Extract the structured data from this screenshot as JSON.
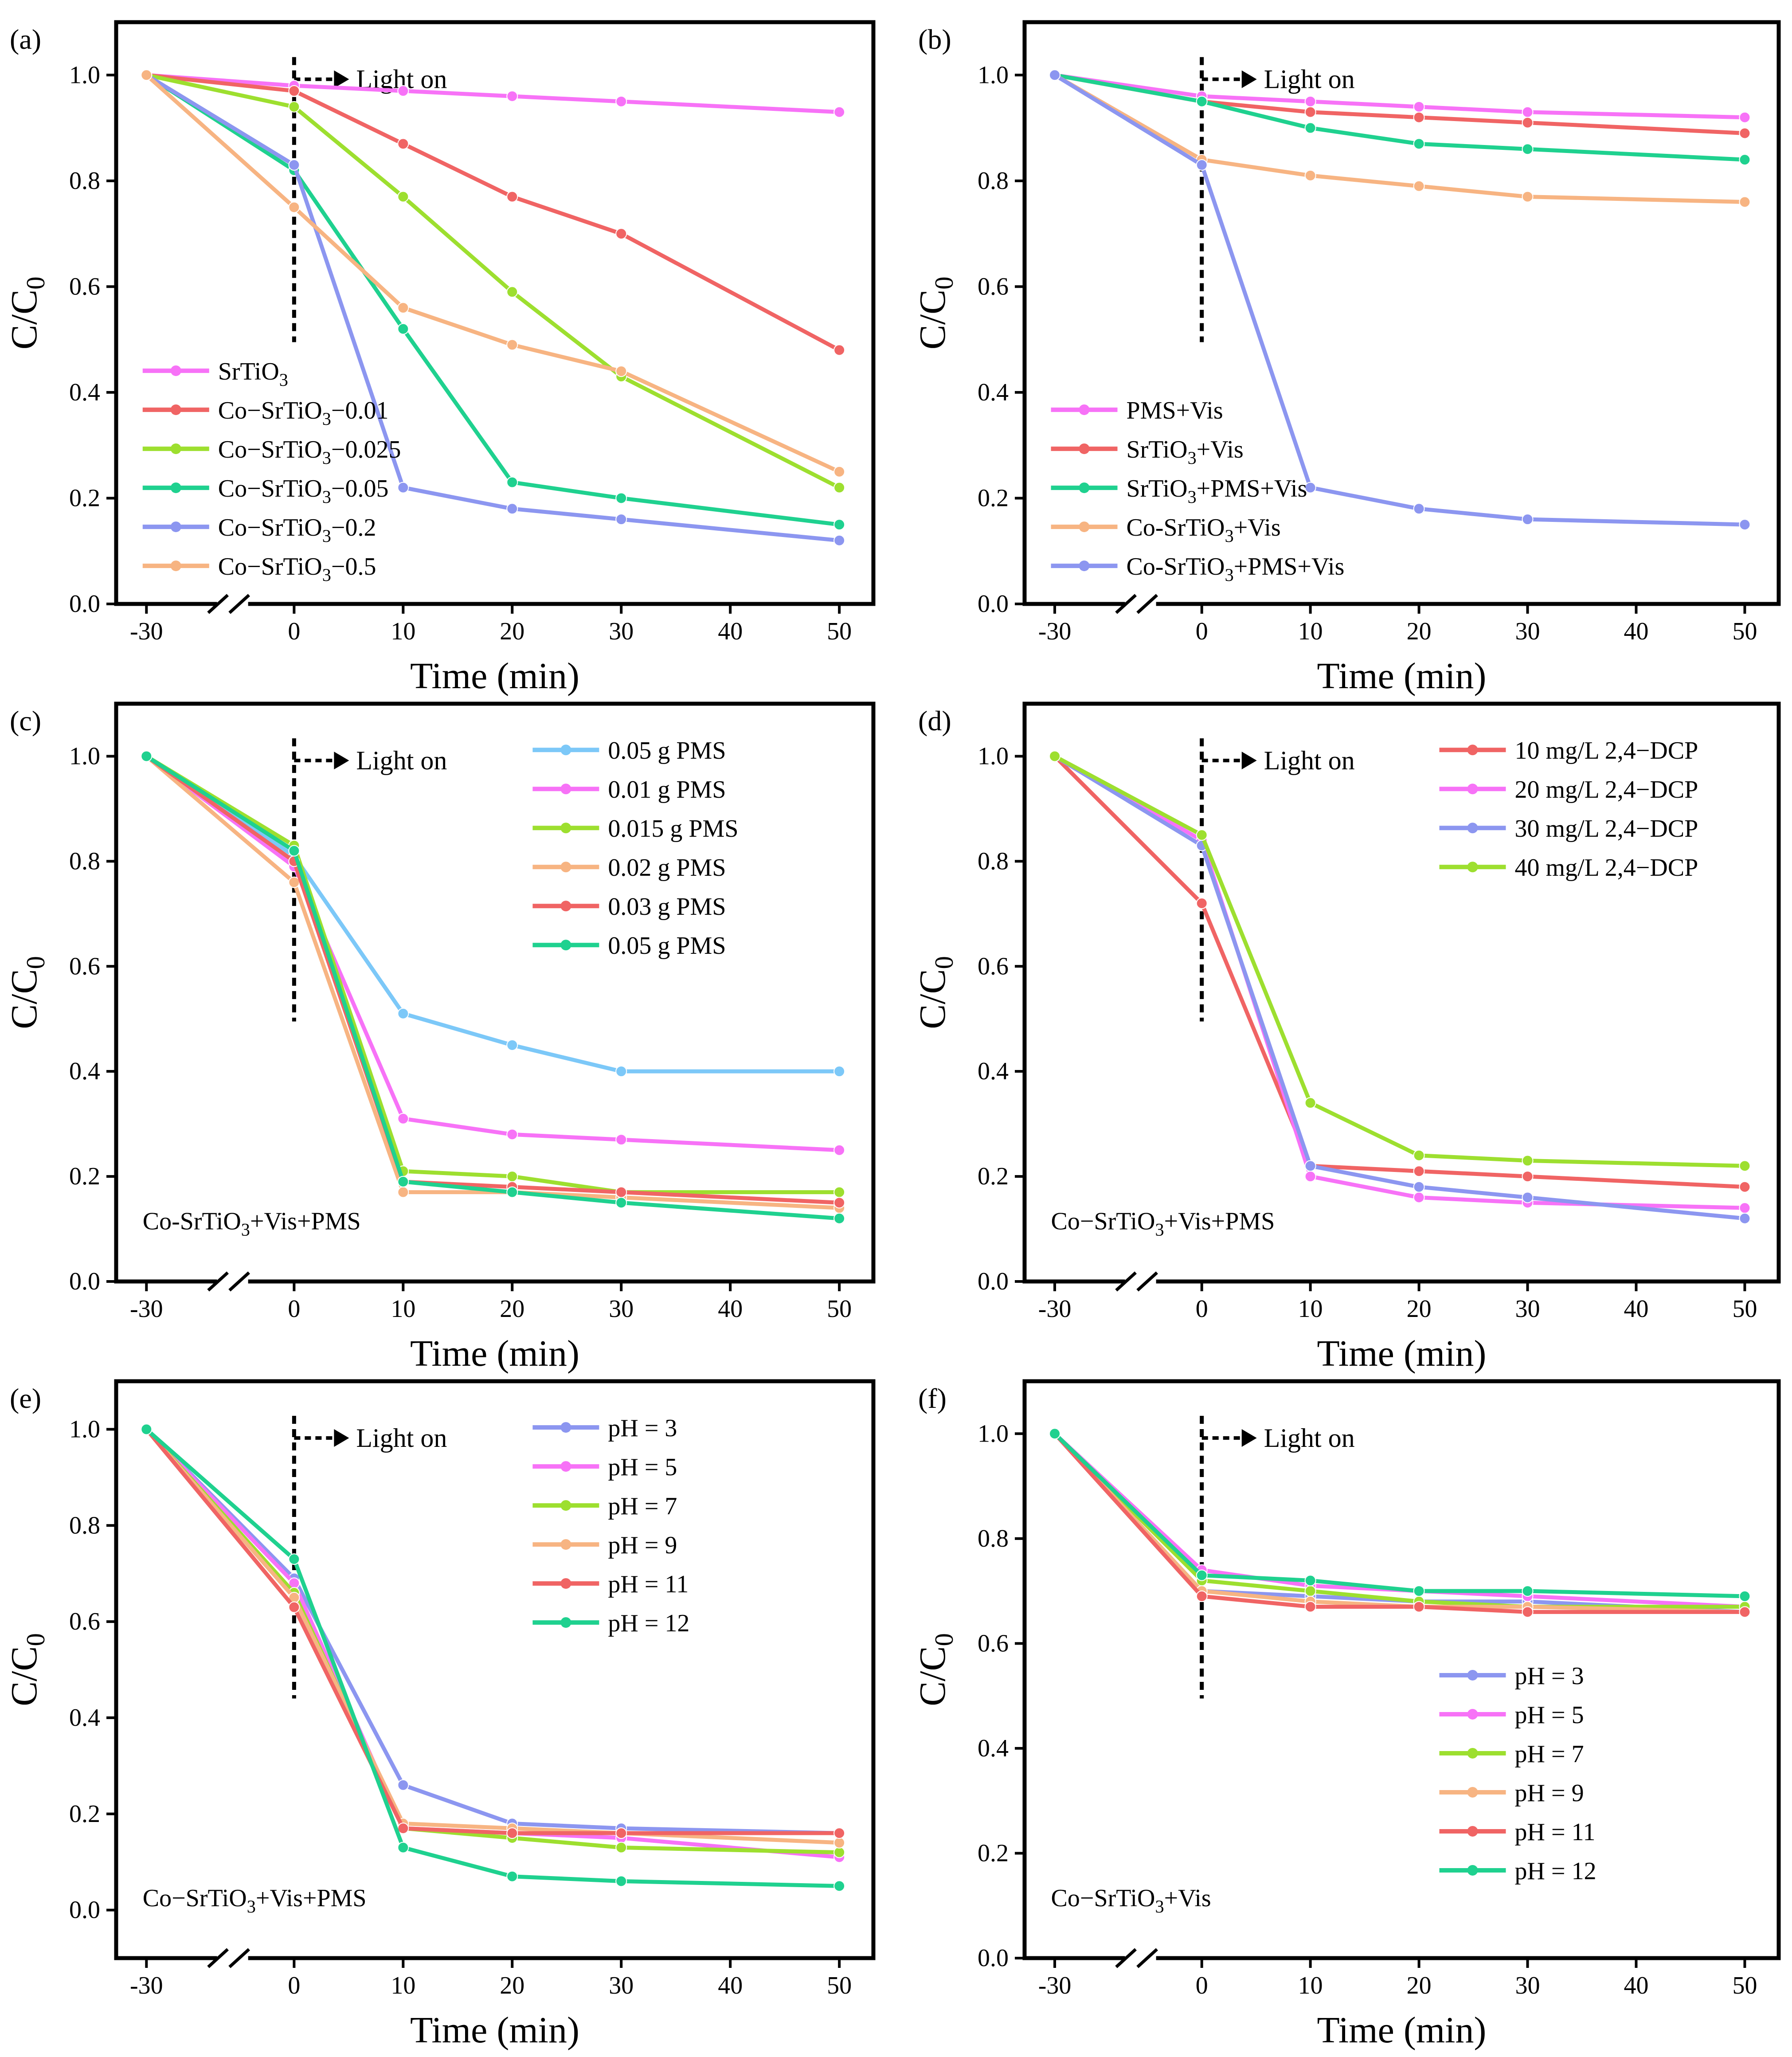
{
  "figure": {
    "x_tick_labels": [
      "-30",
      "0",
      "10",
      "20",
      "30",
      "40",
      "50"
    ],
    "y_tick_labels": [
      "0.0",
      "0.2",
      "0.4",
      "0.6",
      "0.8",
      "1.0"
    ],
    "xlabel": "Time (min)",
    "ylabel_main": "C/C",
    "ylabel_sub": "0",
    "light_label": "Light on"
  },
  "chart_data": [
    {
      "type": "line",
      "panel": "(a)",
      "xlabel": "Time (min)",
      "ylabel": "C/C0",
      "ylim": [
        0,
        1.1
      ],
      "x": [
        -30,
        0,
        10,
        20,
        30,
        50
      ],
      "legend_position": "bottom-left",
      "annotation": "Light on",
      "condition": "",
      "series": [
        {
          "name": "SrTiO3",
          "label_parts": [
            "SrTiO",
            "3",
            ""
          ],
          "color": "#f772f7",
          "values": [
            1.0,
            0.98,
            0.97,
            0.96,
            0.95,
            0.93
          ]
        },
        {
          "name": "Co−SrTiO3−0.01",
          "label_parts": [
            "Co−SrTiO",
            "3",
            "−0.01"
          ],
          "color": "#f06464",
          "values": [
            1.0,
            0.97,
            0.87,
            0.77,
            0.7,
            0.48
          ]
        },
        {
          "name": "Co−SrTiO3−0.025",
          "label_parts": [
            "Co−SrTiO",
            "3",
            "−0.025"
          ],
          "color": "#9ddf2f",
          "values": [
            1.0,
            0.94,
            0.77,
            0.59,
            0.43,
            0.22
          ]
        },
        {
          "name": "Co−SrTiO3−0.05",
          "label_parts": [
            "Co−SrTiO",
            "3",
            "−0.05"
          ],
          "color": "#1fd18f",
          "values": [
            1.0,
            0.82,
            0.52,
            0.23,
            0.2,
            0.15
          ]
        },
        {
          "name": "Co−SrTiO3−0.2",
          "label_parts": [
            "Co−SrTiO",
            "3",
            "−0.2"
          ],
          "color": "#8c96f0",
          "values": [
            1.0,
            0.83,
            0.22,
            0.18,
            0.16,
            0.12
          ]
        },
        {
          "name": "Co−SrTiO3−0.5",
          "label_parts": [
            "Co−SrTiO",
            "3",
            "−0.5"
          ],
          "color": "#f7b482",
          "values": [
            1.0,
            0.75,
            0.56,
            0.49,
            0.44,
            0.25
          ]
        }
      ]
    },
    {
      "type": "line",
      "panel": "(b)",
      "xlabel": "Time (min)",
      "ylabel": "C/C0",
      "ylim": [
        0,
        1.1
      ],
      "x": [
        -30,
        0,
        10,
        20,
        30,
        50
      ],
      "legend_position": "bottom-left",
      "annotation": "Light on",
      "condition": "",
      "series": [
        {
          "name": "PMS+Vis",
          "label_parts": [
            "PMS+Vis",
            "",
            ""
          ],
          "color": "#f772f7",
          "values": [
            1.0,
            0.96,
            0.95,
            0.94,
            0.93,
            0.92
          ]
        },
        {
          "name": "SrTiO3+Vis",
          "label_parts": [
            "SrTiO",
            "3",
            "+Vis"
          ],
          "color": "#f06464",
          "values": [
            1.0,
            0.95,
            0.93,
            0.92,
            0.91,
            0.89
          ]
        },
        {
          "name": "SrTiO3+PMS+Vis",
          "label_parts": [
            "SrTiO",
            "3",
            "+PMS+Vis"
          ],
          "color": "#1fd18f",
          "values": [
            1.0,
            0.95,
            0.9,
            0.87,
            0.86,
            0.84
          ]
        },
        {
          "name": "Co-SrTiO3+Vis",
          "label_parts": [
            "Co-SrTiO",
            "3",
            "+Vis"
          ],
          "color": "#f7b482",
          "values": [
            1.0,
            0.84,
            0.81,
            0.79,
            0.77,
            0.76
          ]
        },
        {
          "name": "Co-SrTiO3+PMS+Vis",
          "label_parts": [
            "Co-SrTiO",
            "3",
            "+PMS+Vis"
          ],
          "color": "#8c96f0",
          "values": [
            1.0,
            0.83,
            0.22,
            0.18,
            0.16,
            0.15
          ]
        }
      ]
    },
    {
      "type": "line",
      "panel": "(c)",
      "xlabel": "Time (min)",
      "ylabel": "C/C0",
      "ylim": [
        0,
        1.1
      ],
      "x": [
        -30,
        0,
        10,
        20,
        30,
        50
      ],
      "legend_position": "top-right",
      "annotation": "Light on",
      "condition_parts": [
        "Co-SrTiO",
        "3",
        "+Vis+PMS"
      ],
      "series": [
        {
          "name": "0.05 g PMS",
          "label_parts": [
            "0.05 g PMS",
            "",
            ""
          ],
          "color": "#7cc8f8",
          "values": [
            1.0,
            0.81,
            0.51,
            0.45,
            0.4,
            0.4
          ]
        },
        {
          "name": "0.01 g PMS",
          "label_parts": [
            "0.01 g PMS",
            "",
            ""
          ],
          "color": "#f772f7",
          "values": [
            1.0,
            0.79,
            0.31,
            0.28,
            0.27,
            0.25
          ]
        },
        {
          "name": "0.015 g PMS",
          "label_parts": [
            "0.015 g PMS",
            "",
            ""
          ],
          "color": "#9ddf2f",
          "values": [
            1.0,
            0.83,
            0.21,
            0.2,
            0.17,
            0.17
          ]
        },
        {
          "name": "0.02 g PMS",
          "label_parts": [
            "0.02 g PMS",
            "",
            ""
          ],
          "color": "#f7b482",
          "values": [
            1.0,
            0.76,
            0.17,
            0.17,
            0.16,
            0.14
          ]
        },
        {
          "name": "0.03 g PMS",
          "label_parts": [
            "0.03 g PMS",
            "",
            ""
          ],
          "color": "#f06464",
          "values": [
            1.0,
            0.8,
            0.19,
            0.18,
            0.17,
            0.15
          ]
        },
        {
          "name": "0.05 g PMS",
          "label_parts": [
            "0.05 g PMS",
            "",
            ""
          ],
          "color": "#1fd18f",
          "values": [
            1.0,
            0.82,
            0.19,
            0.17,
            0.15,
            0.12
          ]
        }
      ]
    },
    {
      "type": "line",
      "panel": "(d)",
      "xlabel": "Time (min)",
      "ylabel": "C/C0",
      "ylim": [
        0,
        1.1
      ],
      "x": [
        -30,
        0,
        10,
        20,
        30,
        50
      ],
      "legend_position": "top-right",
      "annotation": "Light on",
      "condition_parts": [
        "Co−SrTiO",
        "3",
        "+Vis+PMS"
      ],
      "series": [
        {
          "name": "10 mg/L 2,4−DCP",
          "label_parts": [
            "10 mg/L 2,4−DCP",
            "",
            ""
          ],
          "color": "#f06464",
          "values": [
            1.0,
            0.72,
            0.22,
            0.21,
            0.2,
            0.18
          ]
        },
        {
          "name": "20 mg/L 2,4−DCP",
          "label_parts": [
            "20 mg/L 2,4−DCP",
            "",
            ""
          ],
          "color": "#f772f7",
          "values": [
            1.0,
            0.84,
            0.2,
            0.16,
            0.15,
            0.14
          ]
        },
        {
          "name": "30 mg/L 2,4−DCP",
          "label_parts": [
            "30 mg/L 2,4−DCP",
            "",
            ""
          ],
          "color": "#8c96f0",
          "values": [
            1.0,
            0.83,
            0.22,
            0.18,
            0.16,
            0.12
          ]
        },
        {
          "name": "40 mg/L 2,4−DCP",
          "label_parts": [
            "40 mg/L 2,4−DCP",
            "",
            ""
          ],
          "color": "#9ddf2f",
          "values": [
            1.0,
            0.85,
            0.34,
            0.24,
            0.23,
            0.22
          ]
        }
      ]
    },
    {
      "type": "line",
      "panel": "(e)",
      "xlabel": "Time (min)",
      "ylabel": "C/C0",
      "ylim": [
        -0.1,
        1.1
      ],
      "x": [
        -30,
        0,
        10,
        20,
        30,
        50
      ],
      "legend_position": "top-right",
      "annotation": "Light on",
      "condition_parts": [
        "Co−SrTiO",
        "3",
        "+Vis+PMS"
      ],
      "series": [
        {
          "name": "pH = 3",
          "label_parts": [
            "pH = 3",
            "",
            ""
          ],
          "color": "#8c96f0",
          "values": [
            1.0,
            0.69,
            0.26,
            0.18,
            0.17,
            0.16
          ]
        },
        {
          "name": "pH = 5",
          "label_parts": [
            "pH = 5",
            "",
            ""
          ],
          "color": "#f772f7",
          "values": [
            1.0,
            0.68,
            0.17,
            0.16,
            0.15,
            0.11
          ]
        },
        {
          "name": "pH = 7",
          "label_parts": [
            "pH = 7",
            "",
            ""
          ],
          "color": "#9ddf2f",
          "values": [
            1.0,
            0.66,
            0.17,
            0.15,
            0.13,
            0.12
          ]
        },
        {
          "name": "pH = 9",
          "label_parts": [
            "pH = 9",
            "",
            ""
          ],
          "color": "#f7b482",
          "values": [
            1.0,
            0.65,
            0.18,
            0.17,
            0.16,
            0.14
          ]
        },
        {
          "name": "pH = 11",
          "label_parts": [
            "pH = 11",
            "",
            ""
          ],
          "color": "#f06464",
          "values": [
            1.0,
            0.63,
            0.17,
            0.16,
            0.16,
            0.16
          ]
        },
        {
          "name": "pH = 12",
          "label_parts": [
            "pH = 12",
            "",
            ""
          ],
          "color": "#1fd18f",
          "values": [
            1.0,
            0.73,
            0.13,
            0.07,
            0.06,
            0.05
          ]
        }
      ]
    },
    {
      "type": "line",
      "panel": "(f)",
      "xlabel": "Time (min)",
      "ylabel": "C/C0",
      "ylim": [
        0,
        1.1
      ],
      "x": [
        -30,
        0,
        10,
        20,
        30,
        50
      ],
      "legend_position": "bottom-right",
      "annotation": "Light on",
      "condition_parts": [
        "Co−SrTiO",
        "3",
        "+Vis"
      ],
      "series": [
        {
          "name": "pH = 3",
          "label_parts": [
            "pH = 3",
            "",
            ""
          ],
          "color": "#8c96f0",
          "values": [
            1.0,
            0.7,
            0.69,
            0.68,
            0.68,
            0.66
          ]
        },
        {
          "name": "pH = 5",
          "label_parts": [
            "pH = 5",
            "",
            ""
          ],
          "color": "#f772f7",
          "values": [
            1.0,
            0.74,
            0.71,
            0.7,
            0.69,
            0.67
          ]
        },
        {
          "name": "pH = 7",
          "label_parts": [
            "pH = 7",
            "",
            ""
          ],
          "color": "#9ddf2f",
          "values": [
            1.0,
            0.72,
            0.7,
            0.68,
            0.67,
            0.67
          ]
        },
        {
          "name": "pH = 9",
          "label_parts": [
            "pH = 9",
            "",
            ""
          ],
          "color": "#f7b482",
          "values": [
            1.0,
            0.7,
            0.68,
            0.67,
            0.67,
            0.66
          ]
        },
        {
          "name": "pH = 11",
          "label_parts": [
            "pH = 11",
            "",
            ""
          ],
          "color": "#f06464",
          "values": [
            1.0,
            0.69,
            0.67,
            0.67,
            0.66,
            0.66
          ]
        },
        {
          "name": "pH = 12",
          "label_parts": [
            "pH = 12",
            "",
            ""
          ],
          "color": "#1fd18f",
          "values": [
            1.0,
            0.73,
            0.72,
            0.7,
            0.7,
            0.69
          ]
        }
      ]
    }
  ]
}
